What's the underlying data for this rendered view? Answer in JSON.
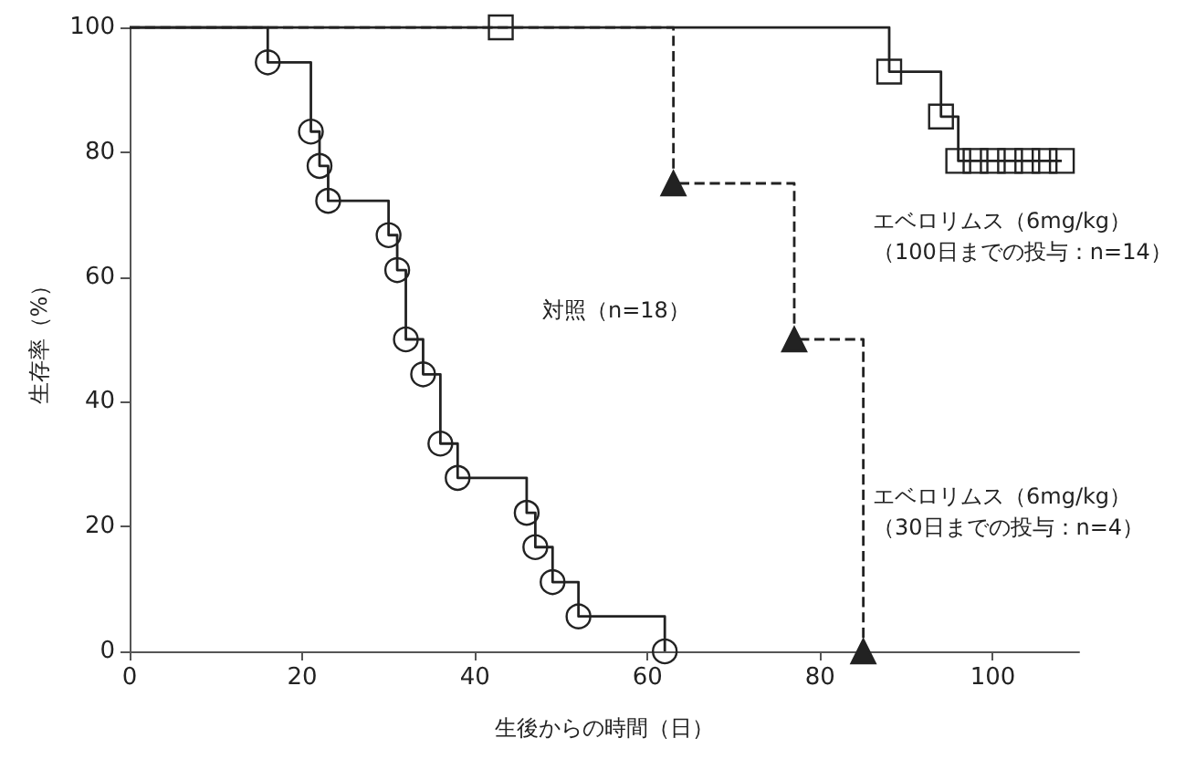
{
  "chart_data": {
    "type": "step",
    "xlabel": "生後からの時間（日）",
    "ylabel": "生存率（%）",
    "xlim": [
      0,
      110
    ],
    "xticks": [
      0,
      20,
      40,
      60,
      80,
      100
    ],
    "ylim": [
      0,
      100
    ],
    "yticks": [
      0,
      20,
      40,
      60,
      80,
      100
    ],
    "grid": false,
    "series": [
      {
        "color": "#222222",
        "marker": "circle",
        "line_style": "solid",
        "x": [
          0,
          16,
          21,
          22,
          23,
          30,
          31,
          32,
          34,
          36,
          38,
          46,
          47,
          49,
          52,
          62
        ],
        "values": [
          100,
          94.4,
          83.3,
          77.8,
          72.2,
          66.7,
          61.1,
          50,
          44.4,
          33.3,
          27.8,
          22.2,
          16.7,
          11.1,
          5.6,
          0
        ]
      },
      {
        "color": "#222222",
        "marker": "square",
        "line_style": "solid",
        "x": [
          0,
          43,
          88,
          94,
          96,
          98,
          100,
          102,
          104,
          106,
          108
        ],
        "values": [
          100,
          100,
          92.9,
          85.7,
          78.6,
          78.6,
          78.6,
          78.6,
          78.6,
          78.6,
          78.6
        ]
      },
      {
        "color": "#222222",
        "marker": "triangle",
        "line_style": "dashed",
        "x": [
          0,
          63,
          77,
          85
        ],
        "values": [
          100,
          75,
          50,
          0
        ]
      }
    ],
    "annotations": [
      "対照（n=18）",
      "エベロリムス（6mg/kg）",
      "（100日までの投与：n=14）",
      "エベロリムス（6mg/kg）",
      "（30日までの投与：n=4）"
    ]
  }
}
